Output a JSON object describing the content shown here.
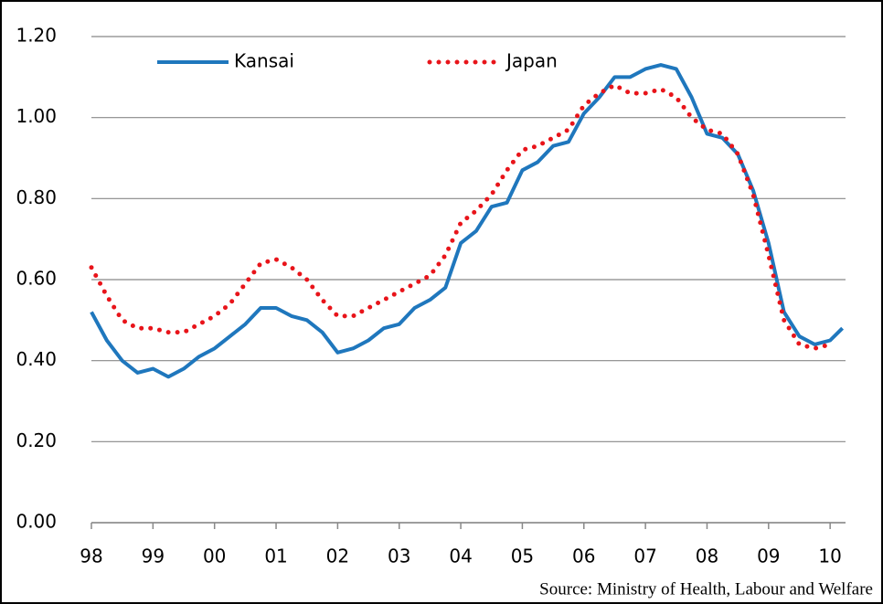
{
  "chart_data": {
    "type": "line",
    "source": "Source: Ministry of Health, Labour and Welfare",
    "x": [
      1998,
      1998.25,
      1998.5,
      1998.75,
      1999,
      1999.25,
      1999.5,
      1999.75,
      2000,
      2000.25,
      2000.5,
      2000.75,
      2001,
      2001.25,
      2001.5,
      2001.75,
      2002,
      2002.25,
      2002.5,
      2002.75,
      2003,
      2003.25,
      2003.5,
      2003.75,
      2004,
      2004.25,
      2004.5,
      2004.75,
      2005,
      2005.25,
      2005.5,
      2005.75,
      2006,
      2006.25,
      2006.5,
      2006.75,
      2007,
      2007.25,
      2007.5,
      2007.75,
      2008,
      2008.25,
      2008.5,
      2008.75,
      2009,
      2009.25,
      2009.5,
      2009.75,
      2010,
      2010.2
    ],
    "series": [
      {
        "name": "Kansai",
        "color": "#1f77bd",
        "style": "solid",
        "values": [
          0.52,
          0.45,
          0.4,
          0.37,
          0.38,
          0.36,
          0.38,
          0.41,
          0.43,
          0.46,
          0.49,
          0.53,
          0.53,
          0.51,
          0.5,
          0.47,
          0.42,
          0.43,
          0.45,
          0.48,
          0.49,
          0.53,
          0.55,
          0.58,
          0.69,
          0.72,
          0.78,
          0.79,
          0.87,
          0.89,
          0.93,
          0.94,
          1.01,
          1.05,
          1.1,
          1.1,
          1.12,
          1.13,
          1.12,
          1.05,
          0.96,
          0.95,
          0.91,
          0.82,
          0.69,
          0.52,
          0.46,
          0.44,
          0.45,
          0.48
        ]
      },
      {
        "name": "Japan",
        "color": "#e8141a",
        "style": "dotted",
        "values": [
          0.63,
          0.56,
          0.5,
          0.48,
          0.48,
          0.47,
          0.47,
          0.49,
          0.51,
          0.54,
          0.59,
          0.64,
          0.65,
          0.63,
          0.6,
          0.55,
          0.51,
          0.51,
          0.53,
          0.55,
          0.57,
          0.59,
          0.61,
          0.66,
          0.74,
          0.77,
          0.81,
          0.87,
          0.92,
          0.93,
          0.95,
          0.97,
          1.03,
          1.06,
          1.08,
          1.06,
          1.06,
          1.07,
          1.05,
          1.0,
          0.97,
          0.96,
          0.91,
          0.81,
          0.66,
          0.5,
          0.44,
          0.43,
          0.44,
          null
        ]
      }
    ],
    "xlim": [
      1998,
      2010.25
    ],
    "xticks": [
      {
        "value": 1998,
        "label": "98"
      },
      {
        "value": 1999,
        "label": "99"
      },
      {
        "value": 2000,
        "label": "00"
      },
      {
        "value": 2001,
        "label": "01"
      },
      {
        "value": 2002,
        "label": "02"
      },
      {
        "value": 2003,
        "label": "03"
      },
      {
        "value": 2004,
        "label": "04"
      },
      {
        "value": 2005,
        "label": "05"
      },
      {
        "value": 2006,
        "label": "06"
      },
      {
        "value": 2007,
        "label": "07"
      },
      {
        "value": 2008,
        "label": "08"
      },
      {
        "value": 2009,
        "label": "09"
      },
      {
        "value": 2010,
        "label": "10"
      }
    ],
    "ylim": [
      0,
      1.2
    ],
    "yticks": [
      {
        "value": 0,
        "label": "0.00"
      },
      {
        "value": 0.2,
        "label": "0.20"
      },
      {
        "value": 0.4,
        "label": "0.40"
      },
      {
        "value": 0.6,
        "label": "0.60"
      },
      {
        "value": 0.8,
        "label": "0.80"
      },
      {
        "value": 1.0,
        "label": "1.00"
      },
      {
        "value": 1.2,
        "label": "1.20"
      }
    ],
    "grid": true,
    "legend": "top"
  }
}
